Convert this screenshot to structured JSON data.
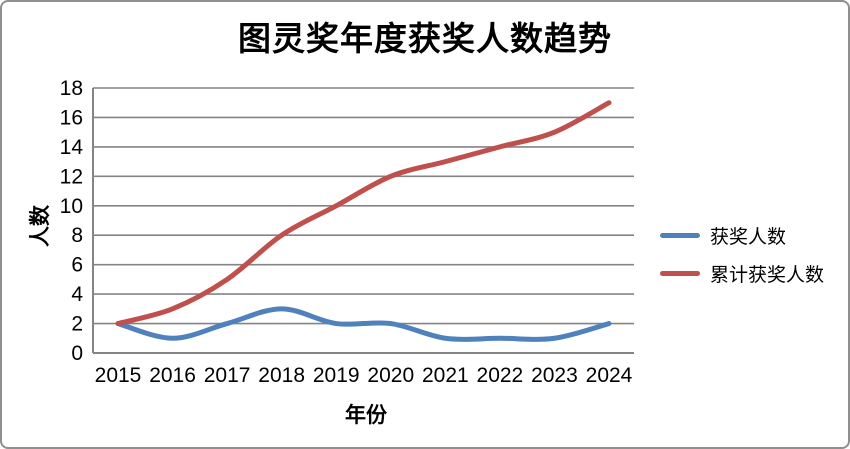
{
  "window": {
    "background": "#ffffff",
    "border_color": "#8f8f8f"
  },
  "chart_data": {
    "type": "line",
    "title": "图灵奖年度获奖人数趋势",
    "xlabel": "年份",
    "ylabel": "人数",
    "categories": [
      "2015",
      "2016",
      "2017",
      "2018",
      "2019",
      "2020",
      "2021",
      "2022",
      "2023",
      "2024"
    ],
    "series": [
      {
        "name": "获奖人数",
        "color": "#4F81BD",
        "values": [
          2,
          1,
          2,
          3,
          2,
          2,
          1,
          1,
          1,
          2
        ]
      },
      {
        "name": "累计获奖人数",
        "color": "#C0504D",
        "values": [
          2,
          3,
          5,
          8,
          10,
          12,
          13,
          14,
          15,
          17
        ]
      }
    ],
    "ylim": [
      0,
      18
    ],
    "y_ticks": [
      0,
      2,
      4,
      6,
      8,
      10,
      12,
      14,
      16,
      18
    ],
    "grid": true,
    "gridline_color": "#848484",
    "axis_color": "#848484",
    "tick_color": "#000000",
    "tick_font_size": 21,
    "line_width": 5,
    "smooth": true,
    "legend_position": "right"
  }
}
